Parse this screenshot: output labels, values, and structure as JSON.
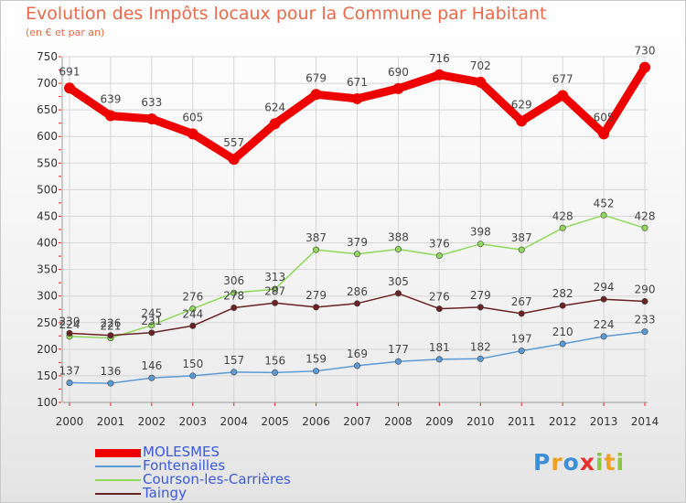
{
  "header": {
    "title": "Evolution des Impôts locaux pour la Commune par Habitant",
    "subtitle": "(en € et par an)"
  },
  "chart_data": {
    "type": "line",
    "title": "Evolution des Impôts locaux pour la Commune par Habitant",
    "subtitle": "(en € et par an)",
    "x": [
      2000,
      2001,
      2002,
      2003,
      2004,
      2005,
      2006,
      2007,
      2008,
      2009,
      2010,
      2011,
      2012,
      2013,
      2014
    ],
    "ylim": [
      100,
      750
    ],
    "yticks": [
      100,
      150,
      200,
      250,
      300,
      350,
      400,
      450,
      500,
      550,
      600,
      650,
      700,
      750
    ],
    "grid": true,
    "legend_position": "bottom-left",
    "series": [
      {
        "name": "MOLESMES",
        "color": "#ee0000",
        "emphasis": true,
        "values": [
          691,
          639,
          633,
          605,
          557,
          624,
          679,
          671,
          690,
          716,
          702,
          629,
          677,
          605,
          730
        ]
      },
      {
        "name": "Fontenailles",
        "color": "#5b9bd5",
        "values": [
          137,
          136,
          146,
          150,
          157,
          156,
          159,
          169,
          177,
          181,
          182,
          197,
          210,
          224,
          233
        ]
      },
      {
        "name": "Courson-les-Carrières",
        "color": "#8fd85a",
        "values": [
          224,
          221,
          245,
          276,
          306,
          313,
          387,
          379,
          388,
          376,
          398,
          387,
          428,
          452,
          428
        ]
      },
      {
        "name": "Taingy",
        "color": "#6b2222",
        "values": [
          230,
          226,
          231,
          244,
          278,
          287,
          279,
          286,
          305,
          276,
          279,
          267,
          282,
          294,
          290
        ]
      }
    ]
  },
  "brand": {
    "letters": [
      {
        "ch": "P",
        "color": "#3a8fd8"
      },
      {
        "ch": "r",
        "color": "#f0a020"
      },
      {
        "ch": "o",
        "color": "#3a8fd8"
      },
      {
        "ch": "x",
        "color": "#e83030"
      },
      {
        "ch": "i",
        "color": "#8cc83c"
      },
      {
        "ch": "t",
        "color": "#f0a020"
      },
      {
        "ch": "i",
        "color": "#8cc83c"
      }
    ]
  }
}
